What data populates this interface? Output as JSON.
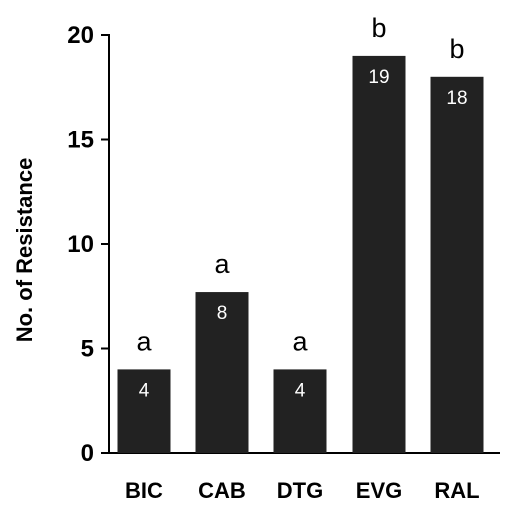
{
  "chart_data": {
    "type": "bar",
    "categories": [
      "BIC",
      "CAB",
      "DTG",
      "EVG",
      "RAL"
    ],
    "values": [
      4,
      7.7,
      4,
      19,
      18
    ],
    "data_labels": [
      "4",
      "8",
      "4",
      "19",
      "18"
    ],
    "significance_letters": [
      "a",
      "a",
      "a",
      "b",
      "b"
    ],
    "ylabel": "No. of Resistance",
    "xlabel": "",
    "ylim": [
      0,
      20
    ],
    "yticks": [
      0,
      5,
      10,
      15,
      20
    ],
    "bar_color": "#222222",
    "grid": false,
    "legend": "none"
  }
}
